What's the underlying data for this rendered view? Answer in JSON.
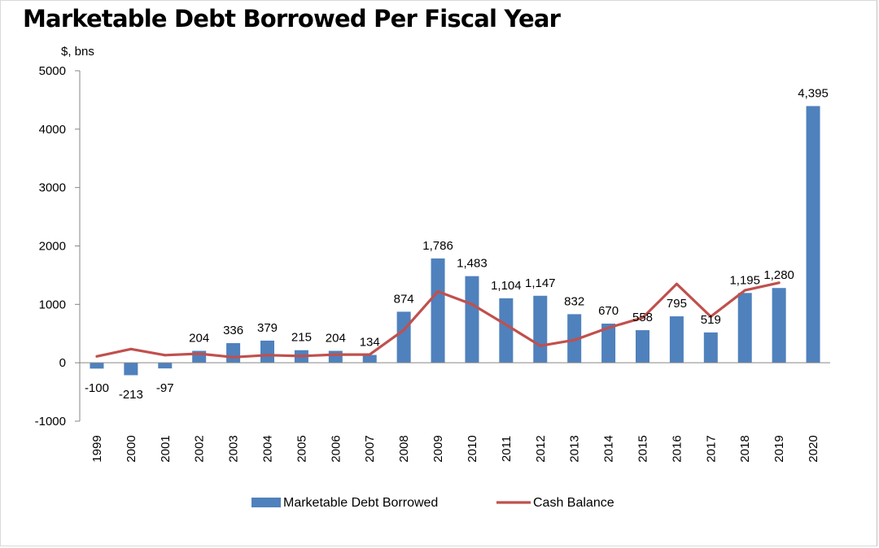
{
  "chart_data": {
    "type": "bar",
    "title": "Marketable Debt Borrowed Per Fiscal Year",
    "ylabel": "$, bns",
    "xlabel": "",
    "ylim": [
      -1000,
      5000
    ],
    "yticks": [
      -1000,
      0,
      1000,
      2000,
      3000,
      4000,
      5000
    ],
    "grid": false,
    "legend_position": "bottom",
    "categories": [
      "1999",
      "2000",
      "2001",
      "2002",
      "2003",
      "2004",
      "2005",
      "2006",
      "2007",
      "2008",
      "2009",
      "2010",
      "2011",
      "2012",
      "2013",
      "2014",
      "2015",
      "2016",
      "2017",
      "2018",
      "2019",
      "2020"
    ],
    "series": [
      {
        "name": "Marketable Debt Borrowed",
        "type": "bar",
        "color": "#4f81bd",
        "values": [
          -100,
          -213,
          -97,
          204,
          336,
          379,
          215,
          204,
          134,
          874,
          1786,
          1483,
          1104,
          1147,
          832,
          670,
          558,
          795,
          519,
          1195,
          1280,
          4395
        ],
        "labels": [
          "-100",
          "-213",
          "-97",
          "204",
          "336",
          "379",
          "215",
          "204",
          "134",
          "874",
          "1,786",
          "1,483",
          "1,104",
          "1,147",
          "832",
          "670",
          "558",
          "795",
          "519",
          "1,195",
          "1,280",
          "4,395"
        ]
      },
      {
        "name": "Cash Balance",
        "type": "line",
        "color": "#c0504d",
        "values": [
          110,
          235,
          130,
          155,
          95,
          130,
          115,
          140,
          140,
          560,
          1220,
          1000,
          650,
          290,
          390,
          600,
          770,
          1350,
          790,
          1240,
          1370,
          null
        ]
      }
    ]
  }
}
